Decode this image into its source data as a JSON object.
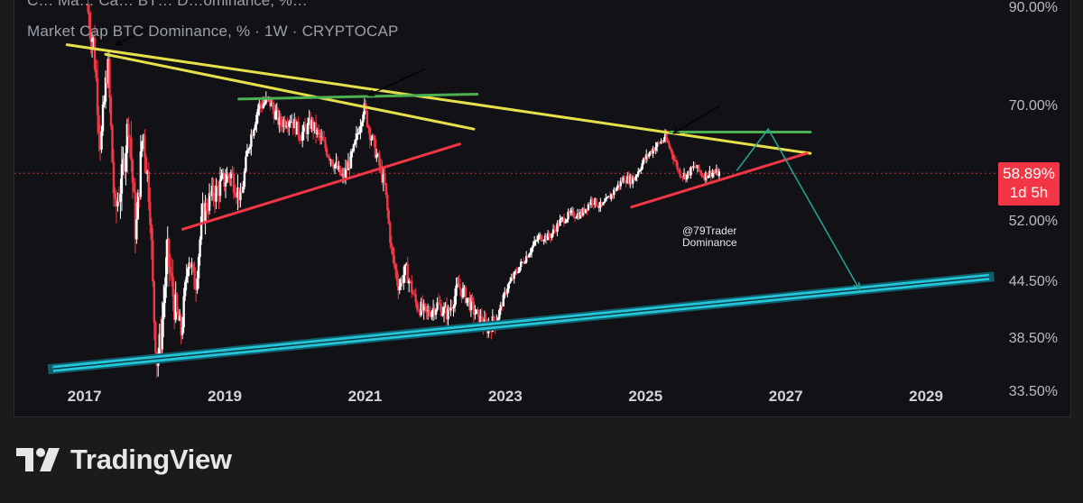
{
  "chart_data": {
    "type": "candlestick",
    "title": "Market Cap BTC Dominance, % · 1W · CRYPTOCAP",
    "title_partial_top": "C… Ma… Ca… BT… D…ominance, %…",
    "y_ticks": [
      "90.00%",
      "70.00%",
      "52.00%",
      "44.50%",
      "38.50%",
      "33.50%"
    ],
    "x_ticks": [
      "2017",
      "2019",
      "2021",
      "2023",
      "2025",
      "2027",
      "2029"
    ],
    "y_scale": "log",
    "ylim": [
      31.5,
      92
    ],
    "xlim": [
      2016.0,
      2029.9
    ],
    "current_price_label": "58.89%",
    "countdown_label": "1d 5h",
    "current_value": 58.89,
    "colors": {
      "up": "#ffffff",
      "down": "#f23645",
      "yellow_trend": "#e6e04a",
      "green_level": "#4caf50",
      "red_trend": "#f23645",
      "cyan_support": "#26c6da",
      "projection": "#26a69a"
    },
    "path_points": [
      [
        2017.05,
        91
      ],
      [
        2017.15,
        82
      ],
      [
        2017.25,
        63
      ],
      [
        2017.35,
        79
      ],
      [
        2017.45,
        53
      ],
      [
        2017.55,
        58
      ],
      [
        2017.65,
        68
      ],
      [
        2017.75,
        50
      ],
      [
        2017.85,
        66
      ],
      [
        2017.95,
        55
      ],
      [
        2018.0,
        42
      ],
      [
        2018.05,
        36.5
      ],
      [
        2018.1,
        38
      ],
      [
        2018.2,
        48
      ],
      [
        2018.3,
        42
      ],
      [
        2018.4,
        39
      ],
      [
        2018.5,
        48
      ],
      [
        2018.6,
        44
      ],
      [
        2018.7,
        53
      ],
      [
        2018.8,
        55
      ],
      [
        2018.95,
        57
      ],
      [
        2019.1,
        59
      ],
      [
        2019.25,
        55
      ],
      [
        2019.35,
        63
      ],
      [
        2019.5,
        70
      ],
      [
        2019.65,
        71
      ],
      [
        2019.8,
        67
      ],
      [
        2019.95,
        68
      ],
      [
        2020.1,
        65
      ],
      [
        2020.25,
        67
      ],
      [
        2020.4,
        64
      ],
      [
        2020.55,
        61
      ],
      [
        2020.7,
        58
      ],
      [
        2020.85,
        62
      ],
      [
        2021.0,
        70
      ],
      [
        2021.1,
        65
      ],
      [
        2021.2,
        61
      ],
      [
        2021.3,
        57
      ],
      [
        2021.4,
        48
      ],
      [
        2021.5,
        44
      ],
      [
        2021.6,
        46
      ],
      [
        2021.75,
        42
      ],
      [
        2021.9,
        41
      ],
      [
        2022.05,
        42
      ],
      [
        2022.2,
        41
      ],
      [
        2022.35,
        44
      ],
      [
        2022.45,
        43
      ],
      [
        2022.6,
        41
      ],
      [
        2022.75,
        39.5
      ],
      [
        2022.9,
        40.5
      ],
      [
        2023.05,
        44
      ],
      [
        2023.2,
        46
      ],
      [
        2023.35,
        48
      ],
      [
        2023.5,
        50
      ],
      [
        2023.65,
        50
      ],
      [
        2023.8,
        52
      ],
      [
        2023.95,
        53
      ],
      [
        2024.1,
        53
      ],
      [
        2024.25,
        55
      ],
      [
        2024.4,
        54
      ],
      [
        2024.55,
        56
      ],
      [
        2024.7,
        58
      ],
      [
        2024.85,
        58
      ],
      [
        2025.0,
        61
      ],
      [
        2025.15,
        63
      ],
      [
        2025.3,
        64.5
      ],
      [
        2025.4,
        62
      ],
      [
        2025.5,
        59
      ],
      [
        2025.6,
        58.5
      ],
      [
        2025.72,
        60
      ],
      [
        2025.85,
        58.5
      ],
      [
        2025.95,
        59
      ],
      [
        2026.05,
        58.9
      ]
    ],
    "trendlines": [
      {
        "name": "yellow-upper",
        "color": "#e6e04a",
        "points": [
          [
            2016.75,
            82
          ],
          [
            2027.35,
            62
          ]
        ]
      },
      {
        "name": "yellow-inner",
        "color": "#e6e04a",
        "points": [
          [
            2017.3,
            80
          ],
          [
            2022.55,
            66
          ]
        ]
      },
      {
        "name": "green-2019",
        "color": "#4caf50",
        "points": [
          [
            2019.2,
            71.3
          ],
          [
            2022.6,
            72.2
          ]
        ]
      },
      {
        "name": "green-2025",
        "color": "#4caf50",
        "points": [
          [
            2025.35,
            65.5
          ],
          [
            2027.35,
            65.5
          ]
        ]
      },
      {
        "name": "red-2019",
        "color": "#f23645",
        "points": [
          [
            2018.4,
            51
          ],
          [
            2022.35,
            63.5
          ]
        ]
      },
      {
        "name": "red-2025",
        "color": "#f23645",
        "points": [
          [
            2024.8,
            54
          ],
          [
            2027.3,
            62
          ]
        ]
      },
      {
        "name": "cyan-support",
        "color": "#26c6da",
        "points": [
          [
            2016.55,
            35.6
          ],
          [
            2029.9,
            45.1
          ]
        ]
      }
    ],
    "projection": [
      [
        2026.3,
        59.3
      ],
      [
        2026.75,
        66
      ],
      [
        2028.05,
        43.7
      ]
    ],
    "arrows": [
      [
        [
          2017.95,
          86
        ],
        [
          2017.45,
          82
        ]
      ],
      [
        [
          2021.85,
          77
        ],
        [
          2021.05,
          72
        ]
      ],
      [
        [
          2026.05,
          70
        ],
        [
          2025.4,
          65.3
        ]
      ]
    ]
  },
  "watermark": {
    "line1": "@79Trader",
    "line2": "Dominance"
  },
  "brand": {
    "name": "TradingView"
  }
}
